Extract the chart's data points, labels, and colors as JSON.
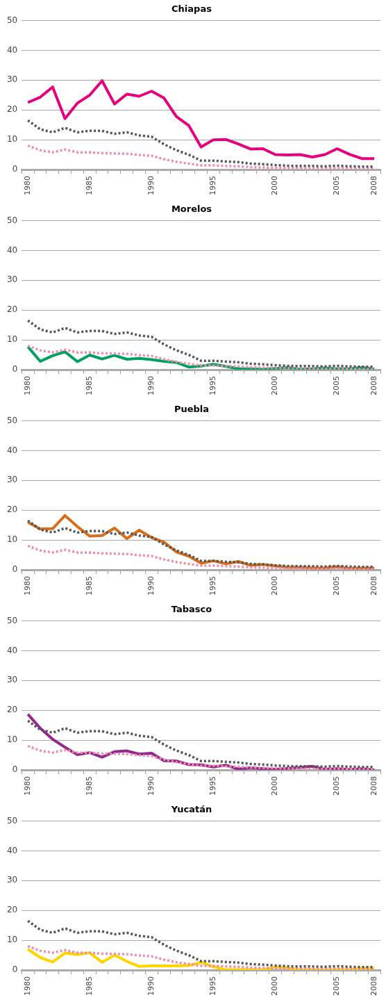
{
  "chart_data": [
    {
      "type": "line",
      "title": "Chiapas",
      "categories": [
        "1980",
        null,
        null,
        null,
        null,
        "1985",
        null,
        null,
        null,
        null,
        "1990",
        null,
        null,
        null,
        null,
        "1995",
        null,
        null,
        null,
        null,
        "2000",
        null,
        null,
        null,
        null,
        "2005",
        null,
        null,
        "2008"
      ],
      "ylim": [
        0,
        50
      ],
      "yticks": [
        0,
        10,
        20,
        30,
        40,
        50
      ],
      "grid": "y",
      "marker": "none",
      "series": [
        {
          "color": "#555555",
          "line_style": "dotted",
          "values": [
            16.5,
            13.5,
            12.5,
            14,
            12.5,
            13,
            13,
            12,
            12.5,
            11.5,
            11,
            8.5,
            6.5,
            5,
            3,
            3,
            2.7,
            2.5,
            2,
            1.8,
            1.5,
            1.3,
            1.2,
            1.2,
            1.1,
            1.3,
            1.1,
            1,
            1
          ]
        },
        {
          "color": "#f08caa",
          "line_style": "dotted",
          "values": [
            8,
            6.5,
            5.8,
            6.7,
            5.8,
            5.8,
            5.5,
            5.4,
            5.3,
            4.9,
            4.6,
            3.5,
            2.6,
            2,
            1.4,
            1.4,
            1.2,
            1.1,
            0.8,
            0.7,
            0.6,
            0.5,
            0.5,
            0.4,
            0.4,
            0.5,
            0.4,
            0.3,
            0.3
          ]
        },
        {
          "color": "#e6007e",
          "line_style": "solid",
          "values": [
            22.5,
            24.3,
            27.7,
            17.1,
            22.3,
            25,
            29.8,
            22,
            25.3,
            24.6,
            26.3,
            24,
            17.8,
            14.8,
            7.6,
            10,
            10.1,
            8.6,
            6.9,
            7,
            5,
            4.9,
            5,
            4.2,
            5,
            7,
            5.1,
            3.7,
            3.7
          ]
        }
      ]
    },
    {
      "type": "line",
      "title": "Morelos",
      "categories": [
        "1980",
        null,
        null,
        null,
        null,
        "1985",
        null,
        null,
        null,
        null,
        "1990",
        null,
        null,
        null,
        null,
        "1995",
        null,
        null,
        null,
        null,
        "2000",
        null,
        null,
        null,
        null,
        "2005",
        null,
        null,
        "2008"
      ],
      "ylim": [
        0,
        50
      ],
      "yticks": [
        0,
        10,
        20,
        30,
        40,
        50
      ],
      "grid": "y",
      "marker": "none",
      "series": [
        {
          "color": "#555555",
          "line_style": "dotted",
          "values": [
            16.5,
            13.5,
            12.5,
            14,
            12.5,
            13,
            13,
            12,
            12.5,
            11.5,
            11,
            8.5,
            6.5,
            5,
            3,
            3,
            2.7,
            2.5,
            2,
            1.8,
            1.5,
            1.3,
            1.2,
            1.2,
            1.1,
            1.3,
            1.1,
            1,
            1
          ]
        },
        {
          "color": "#f08caa",
          "line_style": "dotted",
          "values": [
            8,
            6.5,
            5.8,
            6.7,
            5.8,
            5.8,
            5.5,
            5.4,
            5.3,
            4.9,
            4.6,
            3.5,
            2.6,
            2,
            1.4,
            1.4,
            1.2,
            1.1,
            0.8,
            0.7,
            0.6,
            0.5,
            0.5,
            0.4,
            0.4,
            0.5,
            0.4,
            0.3,
            0.3
          ]
        },
        {
          "color": "#00a160",
          "line_style": "solid",
          "values": [
            7.7,
            2.8,
            4.7,
            6,
            2.7,
            4.9,
            3.6,
            4.8,
            3.5,
            3.8,
            3.4,
            2.8,
            2.4,
            0.9,
            1.2,
            1.8,
            1.1,
            0.3,
            0.3,
            0.1,
            0.4,
            0.7,
            0.1,
            0.3,
            0.6,
            0.3,
            0.3,
            0.7,
            0.2
          ]
        }
      ]
    },
    {
      "type": "line",
      "title": "Puebla",
      "categories": [
        "1980",
        null,
        null,
        null,
        null,
        "1985",
        null,
        null,
        null,
        null,
        "1990",
        null,
        null,
        null,
        null,
        "1995",
        null,
        null,
        null,
        null,
        "2000",
        null,
        null,
        null,
        null,
        "2005",
        null,
        null,
        "2008"
      ],
      "ylim": [
        0,
        50
      ],
      "yticks": [
        0,
        10,
        20,
        30,
        40,
        50
      ],
      "grid": "y",
      "marker": "none",
      "series": [
        {
          "color": "#555555",
          "line_style": "dotted",
          "values": [
            16.5,
            13.5,
            12.5,
            14,
            12.5,
            13,
            13,
            12,
            12.5,
            11.5,
            11,
            8.5,
            6.5,
            5,
            3,
            3,
            2.7,
            2.5,
            2,
            1.8,
            1.5,
            1.3,
            1.2,
            1.2,
            1.1,
            1.3,
            1.1,
            1,
            1
          ]
        },
        {
          "color": "#f08caa",
          "line_style": "dotted",
          "values": [
            8,
            6.5,
            5.8,
            6.7,
            5.8,
            5.8,
            5.5,
            5.4,
            5.3,
            4.9,
            4.6,
            3.5,
            2.6,
            2,
            1.4,
            1.4,
            1.2,
            1.1,
            0.8,
            0.7,
            0.6,
            0.5,
            0.5,
            0.4,
            0.4,
            0.5,
            0.4,
            0.3,
            0.3
          ]
        },
        {
          "color": "#d96e1a",
          "line_style": "solid",
          "values": [
            16,
            13.7,
            13.8,
            18.2,
            14.5,
            11.3,
            11.5,
            14,
            10.5,
            13.3,
            10.8,
            9.3,
            6,
            4.6,
            2.2,
            3,
            2,
            2.8,
            1.5,
            1.8,
            1.3,
            0.8,
            0.8,
            0.6,
            0.6,
            1,
            0.5,
            0.5,
            0.6
          ]
        }
      ]
    },
    {
      "type": "line",
      "title": "Tabasco",
      "categories": [
        "1980",
        null,
        null,
        null,
        null,
        "1985",
        null,
        null,
        null,
        null,
        "1990",
        null,
        null,
        null,
        null,
        "1995",
        null,
        null,
        null,
        null,
        "2000",
        null,
        null,
        null,
        null,
        "2005",
        null,
        null,
        "2008"
      ],
      "ylim": [
        0,
        50
      ],
      "yticks": [
        0,
        10,
        20,
        30,
        40,
        50
      ],
      "grid": "y",
      "marker": "none",
      "series": [
        {
          "color": "#555555",
          "line_style": "dotted",
          "values": [
            16.5,
            13.5,
            12.5,
            14,
            12.5,
            13,
            13,
            12,
            12.5,
            11.5,
            11,
            8.5,
            6.5,
            5,
            3,
            3,
            2.7,
            2.5,
            2,
            1.8,
            1.5,
            1.3,
            1.2,
            1.2,
            1.1,
            1.3,
            1.1,
            1,
            1
          ]
        },
        {
          "color": "#f08caa",
          "line_style": "dotted",
          "values": [
            8,
            6.5,
            5.8,
            6.7,
            5.8,
            5.8,
            5.5,
            5.4,
            5.3,
            4.9,
            4.6,
            3.5,
            2.6,
            2,
            1.4,
            1.4,
            1.2,
            1.1,
            0.8,
            0.7,
            0.6,
            0.5,
            0.5,
            0.4,
            0.4,
            0.5,
            0.4,
            0.3,
            0.3
          ]
        },
        {
          "color": "#93278f",
          "line_style": "solid",
          "values": [
            18.7,
            14,
            10.3,
            7.6,
            5.1,
            5.8,
            4.3,
            6.1,
            6.4,
            5.3,
            5.6,
            3.1,
            3,
            1.8,
            1.7,
            1,
            1.6,
            0.3,
            0.7,
            0.4,
            0.2,
            0.5,
            0.8,
            1.2,
            0.2,
            0.4,
            0.1,
            0.4,
            0
          ]
        }
      ]
    },
    {
      "type": "line",
      "title": "Yucatán",
      "categories": [
        "1980",
        null,
        null,
        null,
        null,
        "1985",
        null,
        null,
        null,
        null,
        "1990",
        null,
        null,
        null,
        null,
        "1995",
        null,
        null,
        null,
        null,
        "2000",
        null,
        null,
        null,
        null,
        "2005",
        null,
        null,
        "2008"
      ],
      "ylim": [
        0,
        50
      ],
      "yticks": [
        0,
        10,
        20,
        30,
        40,
        50
      ],
      "grid": "y",
      "marker": "none",
      "series": [
        {
          "color": "#555555",
          "line_style": "dotted",
          "values": [
            16.5,
            13.5,
            12.5,
            14,
            12.5,
            13,
            13,
            12,
            12.5,
            11.5,
            11,
            8.5,
            6.5,
            5,
            3,
            3,
            2.7,
            2.5,
            2,
            1.8,
            1.5,
            1.3,
            1.2,
            1.2,
            1.1,
            1.3,
            1.1,
            1,
            1
          ]
        },
        {
          "color": "#f08caa",
          "line_style": "dotted",
          "values": [
            8,
            6.5,
            5.8,
            6.7,
            5.8,
            5.8,
            5.5,
            5.4,
            5.3,
            4.9,
            4.6,
            3.5,
            2.6,
            2,
            1.4,
            1.4,
            1.2,
            1.1,
            0.8,
            0.7,
            0.6,
            0.5,
            0.5,
            0.4,
            0.4,
            0.5,
            0.4,
            0.3,
            0.3
          ]
        },
        {
          "color": "#ffd500",
          "line_style": "solid",
          "values": [
            7,
            4.2,
            2.7,
            5.7,
            5.2,
            5.8,
            2.6,
            5,
            2.9,
            1.2,
            1.4,
            1.4,
            1.4,
            1.5,
            2.6,
            1.1,
            0.1,
            0.1,
            0.1,
            0,
            1,
            0.7,
            0,
            0.2,
            0,
            0.2,
            0.1,
            0.6,
            0.6
          ]
        }
      ]
    }
  ]
}
